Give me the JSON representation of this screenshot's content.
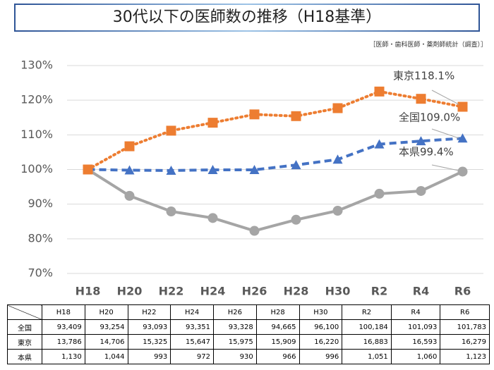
{
  "title": "30代以下の医師数の推移（H18基準）",
  "source": "［医師・歯科医師・薬剤師統計（調査）］",
  "chart_data": {
    "type": "line",
    "categories": [
      "H18",
      "H20",
      "H22",
      "H24",
      "H26",
      "H28",
      "H30",
      "R2",
      "R4",
      "R6"
    ],
    "series": [
      {
        "name": "全国",
        "color": "#4472c4",
        "dash": "dashed",
        "marker": "triangle",
        "values": [
          100,
          99.8,
          99.7,
          99.9,
          99.9,
          101.3,
          102.9,
          107.3,
          108.2,
          109.0
        ]
      },
      {
        "name": "東京",
        "color": "#ed7d31",
        "dash": "dotted",
        "marker": "square",
        "values": [
          100,
          106.7,
          111.2,
          113.5,
          115.9,
          115.4,
          117.7,
          122.5,
          120.4,
          118.1
        ]
      },
      {
        "name": "本県",
        "color": "#a5a5a5",
        "dash": "solid",
        "marker": "circle",
        "values": [
          100,
          92.4,
          87.9,
          86.0,
          82.3,
          85.5,
          88.1,
          93.0,
          93.8,
          99.4
        ]
      }
    ],
    "ylim": [
      70,
      130
    ],
    "yticks": [
      {
        "value": 70,
        "label": "70%"
      },
      {
        "value": 80,
        "label": "80%"
      },
      {
        "value": 90,
        "label": "90%"
      },
      {
        "value": 100,
        "label": "100%"
      },
      {
        "value": 110,
        "label": "110%"
      },
      {
        "value": 120,
        "label": "120%"
      },
      {
        "value": 130,
        "label": "130%"
      }
    ],
    "grid": true,
    "annotations": [
      "全国109.0%",
      "東京118.1%",
      "本県99.4%"
    ]
  },
  "table": {
    "rows": [
      [
        "93,409",
        "93,254",
        "93,093",
        "93,351",
        "93,328",
        "94,665",
        "96,100",
        "100,184",
        "101,093",
        "101,783"
      ],
      [
        "13,786",
        "14,706",
        "15,325",
        "15,647",
        "15,975",
        "15,909",
        "16,220",
        "16,883",
        "16,593",
        "16,279"
      ],
      [
        "1,130",
        "1,044",
        "993",
        "972",
        "930",
        "966",
        "996",
        "1,051",
        "1,060",
        "1,123"
      ]
    ]
  }
}
